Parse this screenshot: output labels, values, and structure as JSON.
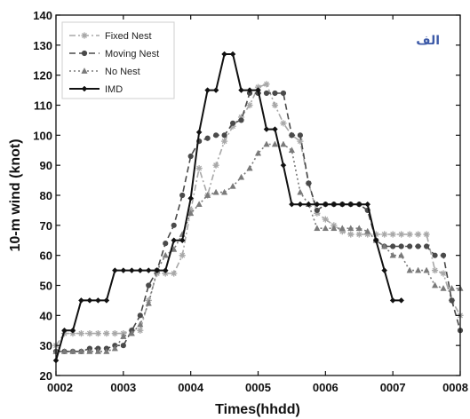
{
  "chart_data": {
    "type": "line",
    "xlabel": "Times(hhdd)",
    "ylabel": "10-m wind (knot)",
    "panel_label": "الف",
    "xlim": [
      0,
      6
    ],
    "ylim": [
      20,
      140
    ],
    "x_tick_values": [
      0,
      1,
      2,
      3,
      4,
      5,
      6
    ],
    "x_tick_labels": [
      "0002",
      "0003",
      "0004",
      "0005",
      "0006",
      "0007",
      "0008"
    ],
    "y_ticks": [
      20,
      30,
      40,
      50,
      60,
      70,
      80,
      90,
      100,
      110,
      120,
      130,
      140
    ],
    "grid": false,
    "legend_position": "top-left",
    "series": [
      {
        "name": "Fixed Nest",
        "color": "#a8a8a8",
        "dash": "dash-dot",
        "marker": "star",
        "x": [
          0,
          0.125,
          0.25,
          0.375,
          0.5,
          0.625,
          0.75,
          0.875,
          1.0,
          1.125,
          1.25,
          1.375,
          1.5,
          1.625,
          1.75,
          1.875,
          2.0,
          2.125,
          2.25,
          2.375,
          2.5,
          2.625,
          2.75,
          2.875,
          3.0,
          3.125,
          3.25,
          3.375,
          3.5,
          3.625,
          3.75,
          3.875,
          4.0,
          4.125,
          4.25,
          4.375,
          4.5,
          4.625,
          4.75,
          4.875,
          5.0,
          5.125,
          5.25,
          5.375,
          5.5,
          5.625,
          5.75,
          5.875,
          6.0
        ],
        "y": [
          30,
          34,
          34,
          34,
          34,
          34,
          34,
          34,
          34,
          35,
          35,
          45,
          54,
          54,
          54,
          60,
          75,
          89,
          80,
          90,
          98,
          103,
          106,
          110,
          116,
          117,
          110,
          104,
          100,
          98,
          84,
          74,
          72,
          70,
          68,
          67,
          67,
          67,
          67,
          67,
          67,
          67,
          67,
          67,
          67,
          55,
          54,
          45,
          40
        ]
      },
      {
        "name": "Moving Nest",
        "color": "#4a4a4a",
        "dash": "dash",
        "marker": "circle",
        "x": [
          0,
          0.125,
          0.25,
          0.375,
          0.5,
          0.625,
          0.75,
          0.875,
          1.0,
          1.125,
          1.25,
          1.375,
          1.5,
          1.625,
          1.75,
          1.875,
          2.0,
          2.125,
          2.25,
          2.375,
          2.5,
          2.625,
          2.75,
          2.875,
          3.0,
          3.125,
          3.25,
          3.375,
          3.5,
          3.625,
          3.75,
          3.875,
          4.0,
          4.125,
          4.25,
          4.375,
          4.5,
          4.625,
          4.75,
          4.875,
          5.0,
          5.125,
          5.25,
          5.375,
          5.5,
          5.625,
          5.75,
          5.875,
          6.0
        ],
        "y": [
          28,
          28,
          28,
          28,
          29,
          29,
          29,
          30,
          30,
          35,
          40,
          50,
          55,
          64,
          70,
          80,
          93,
          98,
          99,
          100,
          100,
          104,
          105,
          114,
          114,
          114,
          114,
          114,
          100,
          100,
          84,
          75,
          77,
          77,
          77,
          77,
          77,
          75,
          65,
          63,
          63,
          63,
          63,
          63,
          63,
          60,
          60,
          45,
          35
        ]
      },
      {
        "name": "No Nest",
        "color": "#7a7a7a",
        "dash": "dot",
        "marker": "triangle",
        "x": [
          0,
          0.125,
          0.25,
          0.375,
          0.5,
          0.625,
          0.75,
          0.875,
          1.0,
          1.125,
          1.25,
          1.375,
          1.5,
          1.625,
          1.75,
          1.875,
          2.0,
          2.125,
          2.25,
          2.375,
          2.5,
          2.625,
          2.75,
          2.875,
          3.0,
          3.125,
          3.25,
          3.375,
          3.5,
          3.625,
          3.75,
          3.875,
          4.0,
          4.125,
          4.25,
          4.375,
          4.5,
          4.625,
          4.75,
          4.875,
          5.0,
          5.125,
          5.25,
          5.375,
          5.5,
          5.625,
          5.75,
          5.875,
          6.0
        ],
        "y": [
          28,
          28,
          28,
          28,
          28,
          28,
          28,
          29,
          33,
          34,
          37,
          44,
          55,
          60,
          62,
          67,
          74,
          77,
          80,
          81,
          81,
          83,
          86,
          89,
          94,
          97,
          97,
          97,
          95,
          81,
          77,
          69,
          69,
          69,
          69,
          69,
          69,
          68,
          65,
          63,
          60,
          60,
          55,
          55,
          55,
          50,
          49,
          49,
          49
        ]
      },
      {
        "name": "IMD",
        "color": "#111111",
        "dash": "solid",
        "marker": "diamond",
        "x": [
          0,
          0.125,
          0.25,
          0.375,
          0.5,
          0.625,
          0.75,
          0.875,
          1.0,
          1.125,
          1.25,
          1.375,
          1.5,
          1.625,
          1.75,
          1.875,
          2.0,
          2.125,
          2.25,
          2.375,
          2.5,
          2.625,
          2.75,
          2.875,
          3.0,
          3.125,
          3.25,
          3.375,
          3.5,
          3.625,
          3.75,
          3.875,
          4.0,
          4.125,
          4.25,
          4.375,
          4.5,
          4.625,
          4.75,
          4.875,
          5.0,
          5.125
        ],
        "y": [
          25,
          35,
          35,
          45,
          45,
          45,
          45,
          55,
          55,
          55,
          55,
          55,
          55,
          55,
          65,
          65,
          79,
          101,
          115,
          115,
          127,
          127,
          115,
          115,
          115,
          102,
          102,
          90,
          77,
          77,
          77,
          77,
          77,
          77,
          77,
          77,
          77,
          77,
          65,
          55,
          45,
          45
        ]
      }
    ]
  }
}
